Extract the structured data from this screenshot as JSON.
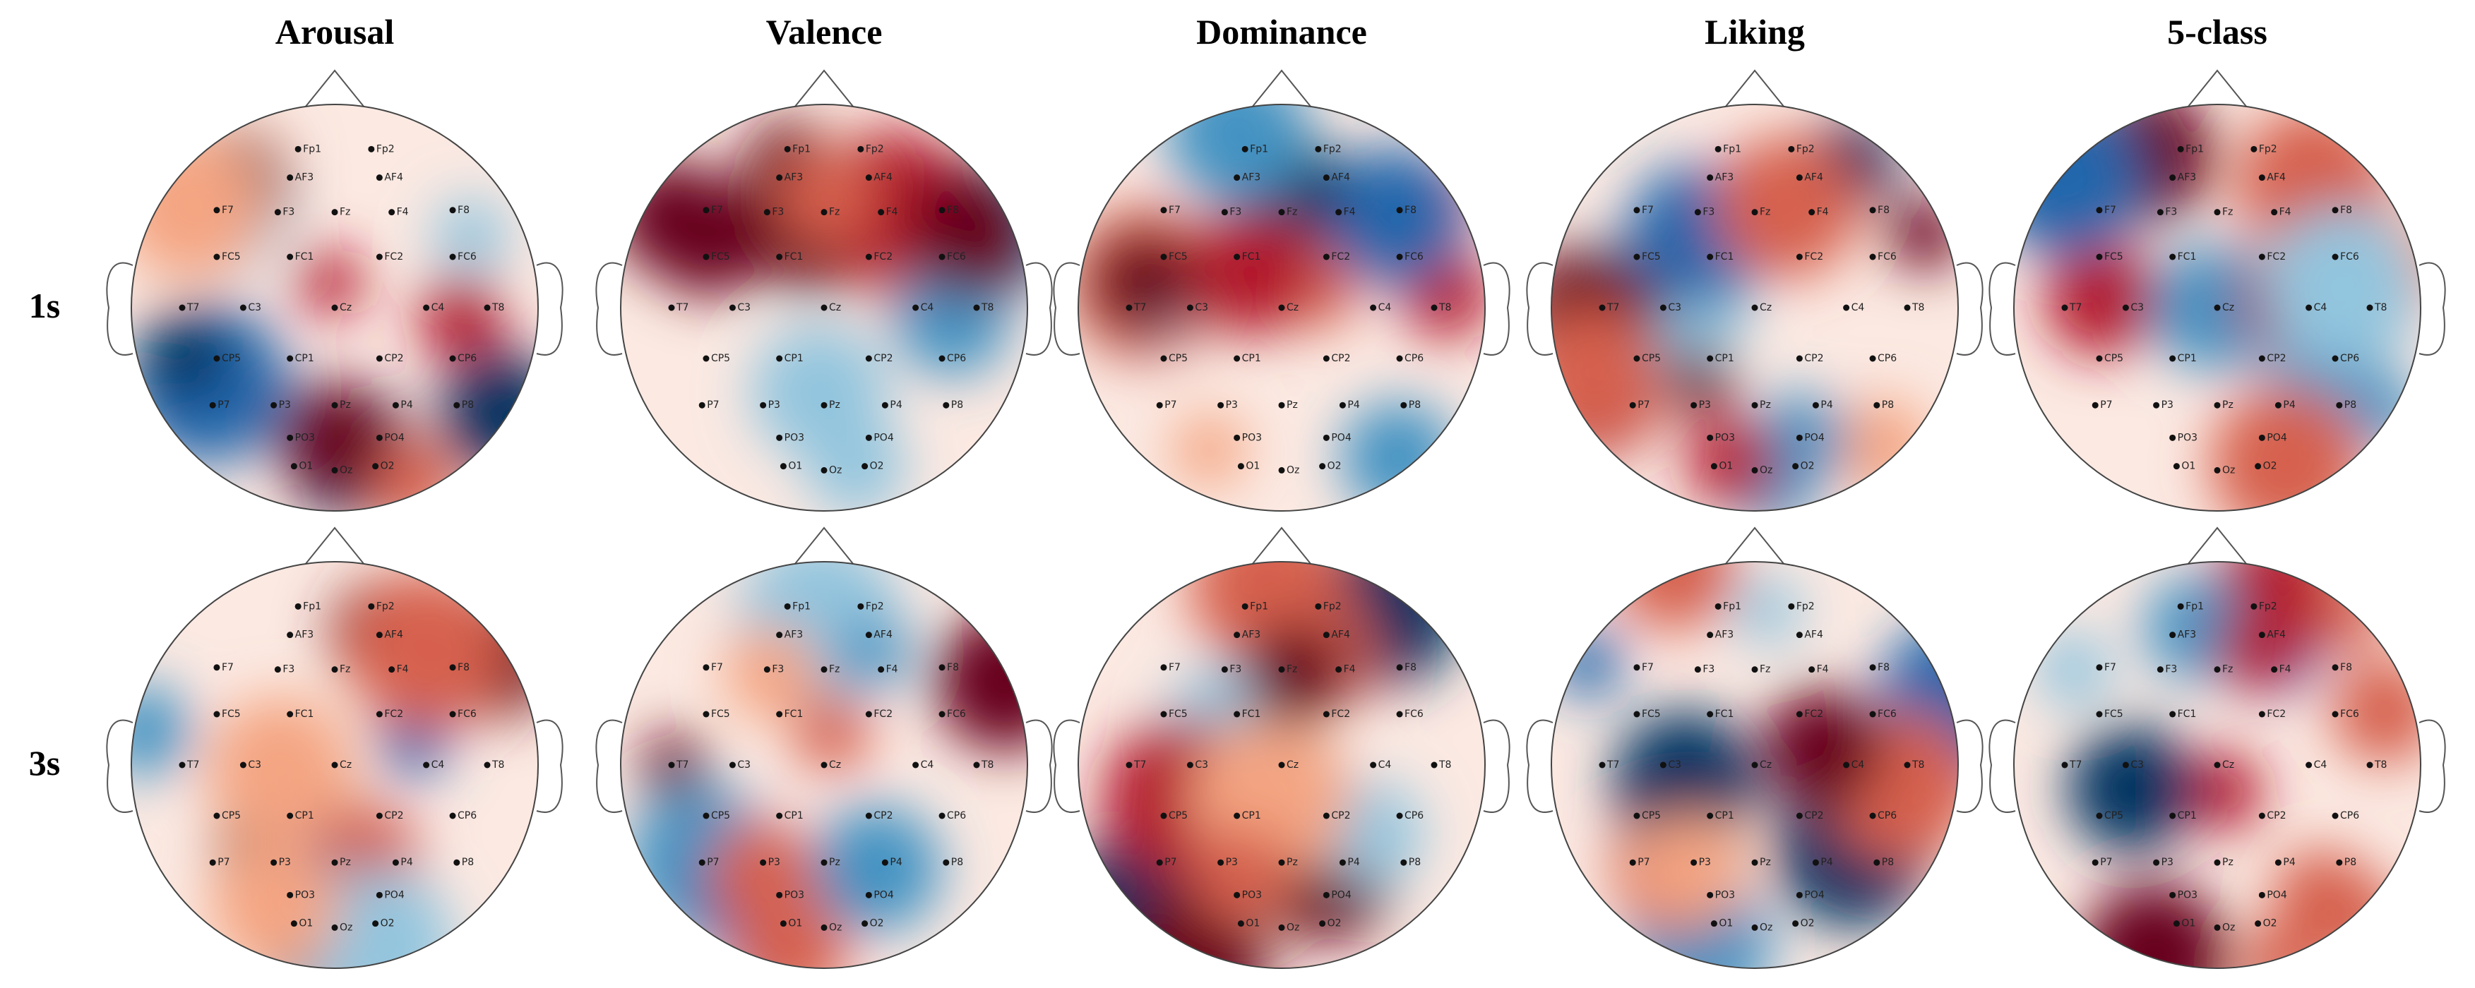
{
  "column_titles": [
    "Arousal",
    "Valence",
    "Dominance",
    "Liking",
    "5-class"
  ],
  "row_labels": [
    "1s",
    "3s"
  ],
  "electrodes": [
    "Fp1",
    "Fp2",
    "AF3",
    "AF4",
    "F7",
    "F3",
    "Fz",
    "F4",
    "F8",
    "FC5",
    "FC1",
    "FC2",
    "FC6",
    "T7",
    "C3",
    "Cz",
    "C4",
    "T8",
    "CP5",
    "CP1",
    "CP2",
    "CP6",
    "P7",
    "P3",
    "Pz",
    "P4",
    "P8",
    "PO3",
    "PO4",
    "O1",
    "Oz",
    "O2"
  ]
}
